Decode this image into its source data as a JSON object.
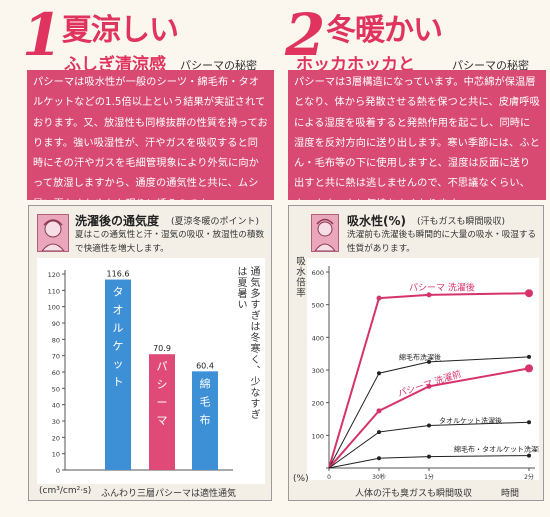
{
  "left": {
    "num": "1",
    "heading": "夏涼しい",
    "subheading": "ふしぎ清涼感",
    "tag": "パシーマの秘密",
    "paragraph": "パシーマは吸水性が一般のシーツ・綿毛布・タオルケットなどの1.5倍以上という結果が実証されております。又、放湿性も同様抜群の性質を持っております。強い吸湿性が、汗やガスを吸収すると同時にその汗やガスを毛細管現象により外気に向かって放湿しますから、通度の通気性と共に、ムシ暑い夏もさわやかな眠りに誘うのです。",
    "panel": {
      "title": "洗濯後の通気度",
      "note": "(夏涼冬暖のポイント)",
      "desc": "夏はこの通気性と汗・湿気の吸収・放湿性の積数で快適性を増大します。",
      "side_note": "通気多すぎは冬寒く、少なすぎは夏暑い",
      "unit": "(cm³/cm²·s)",
      "footnote": "ふんわり三層パシーマは適性通気"
    }
  },
  "right": {
    "num": "2",
    "heading": "冬暖かい",
    "subheading": "ホッカホッカと",
    "tag": "パシーマの秘密",
    "paragraph": "パシーマは3層構造になっています。中芯綿が保温層となり、体から発散させる熱を保つと共に、皮膚呼吸による湿度を吸着すると発熱作用を起こし、同時に湿度を反対方向に送り出します。寒い季節には、ふとん・毛布等の下に使用しますと、湿度は反面に送り出すと共に熱は逃しませんので、不思議なくらい、ホッカホッカと気持ちよくなります。",
    "panel": {
      "title": "吸水性(%)",
      "note": "(汗もガスも瞬間吸収)",
      "desc": "洗濯前も洗濯後も瞬間的に大量の吸水・吸湿する性質があります。",
      "ylabel": "吸水倍率",
      "xlabel": "人体の汗も臭ガスも瞬間吸収",
      "xunit": "時間",
      "yunit": "(%)"
    }
  },
  "chart_data": [
    {
      "type": "bar",
      "title": "洗濯後の通気度",
      "categories": [
        "タオルケット",
        "パシーマ",
        "綿毛布"
      ],
      "values": [
        116.6,
        70.9,
        60.4
      ],
      "value_labels": [
        "116.6",
        "70.9",
        "60.4"
      ],
      "colors": [
        "#3d8fd6",
        "#df4a78",
        "#3d8fd6"
      ],
      "yticks": [
        "0",
        "10",
        "20",
        "30",
        "40",
        "50",
        "60",
        "70",
        "80",
        "90",
        "100",
        "110",
        "120"
      ],
      "ylim": [
        0,
        120
      ],
      "xlabel": "",
      "ylabel": "(cm³/cm²·s)"
    },
    {
      "type": "line",
      "title": "吸水性(%)",
      "x": [
        0,
        30,
        60,
        120
      ],
      "xticks": [
        "0",
        "30秒",
        "1分",
        "2分"
      ],
      "yticks": [
        "0",
        "100",
        "200",
        "300",
        "400",
        "500",
        "600"
      ],
      "ylim": [
        0,
        600
      ],
      "series": [
        {
          "name": "パシーマ 洗濯後",
          "values": [
            0,
            520,
            530,
            535
          ],
          "color": "#d6336a"
        },
        {
          "name": "綿毛布洗濯後",
          "values": [
            0,
            290,
            325,
            340
          ],
          "color": "#222222"
        },
        {
          "name": "パシーマ 洗濯前",
          "values": [
            0,
            175,
            250,
            305
          ],
          "color": "#d6336a"
        },
        {
          "name": "タオルケット洗濯後",
          "values": [
            0,
            110,
            130,
            140
          ],
          "color": "#222222"
        },
        {
          "name": "綿毛布・タオルケット洗濯前",
          "values": [
            0,
            30,
            35,
            38
          ],
          "color": "#222222"
        }
      ]
    }
  ]
}
